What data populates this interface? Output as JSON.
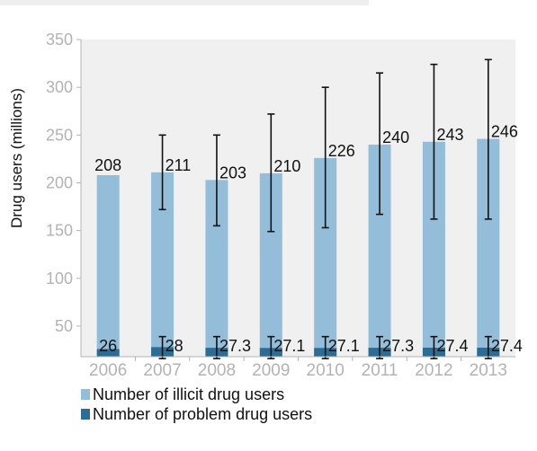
{
  "chart_data": {
    "type": "bar",
    "ylabel": "Drug users (millions)",
    "ylim": [
      18,
      350
    ],
    "yticks": [
      50,
      100,
      150,
      200,
      250,
      300,
      350
    ],
    "categories": [
      "2006",
      "2007",
      "2008",
      "2009",
      "2010",
      "2011",
      "2012",
      "2013"
    ],
    "series": [
      {
        "name": "Number of illicit drug users",
        "color": "#94bdd9",
        "values": [
          208,
          211,
          203,
          210,
          226,
          240,
          243,
          246
        ],
        "labels": [
          "208",
          "211",
          "203",
          "210",
          "226",
          "240",
          "243",
          "246"
        ],
        "error_low": [
          null,
          172,
          155,
          149,
          153,
          167,
          162,
          162
        ],
        "error_high": [
          null,
          250,
          250,
          272,
          300,
          315,
          324,
          329
        ]
      },
      {
        "name": "Number of problem drug users",
        "color": "#2a6d96",
        "values": [
          26,
          28,
          27.3,
          27.1,
          27.1,
          27.3,
          27.4,
          27.4
        ],
        "labels": [
          "26",
          "28",
          "27.3",
          "27.1",
          "27.1",
          "27.3",
          "27.4",
          "27.4"
        ],
        "error_low": [
          null,
          16,
          16,
          16,
          16,
          16,
          16,
          16
        ],
        "error_high": [
          null,
          39,
          39,
          39,
          39,
          39,
          39,
          39
        ]
      }
    ],
    "legend_position": "bottom-left",
    "grid": false
  }
}
